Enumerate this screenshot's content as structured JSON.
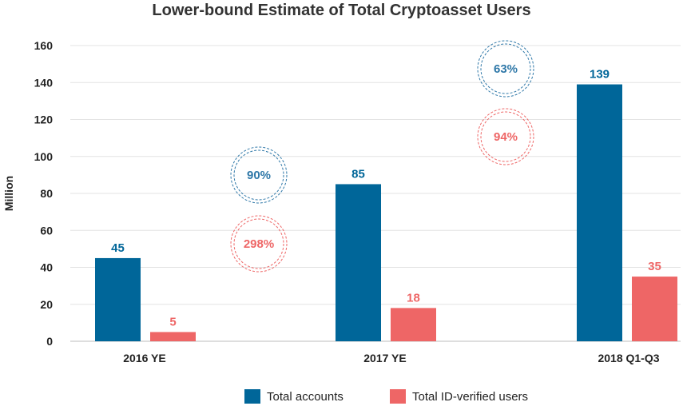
{
  "chart_data": {
    "type": "bar",
    "title": "Lower-bound Estimate of Total Cryptoasset Users",
    "ylabel": "Million",
    "xlabel": "",
    "ylim": [
      0,
      160
    ],
    "yticks": [
      "0",
      "20",
      "40",
      "60",
      "80",
      "100",
      "120",
      "140",
      "160"
    ],
    "grid": true,
    "legend_position": "bottom",
    "categories": [
      "2016 YE",
      "2017 YE",
      "2018 Q1-Q3"
    ],
    "series": [
      {
        "name": "Total accounts",
        "color": "#006699",
        "values": [
          45,
          85,
          139
        ],
        "labels": [
          "45",
          "85",
          "139"
        ]
      },
      {
        "name": "Total ID-verified users",
        "color": "#ee6666",
        "values": [
          5,
          18,
          35
        ],
        "labels": [
          "5",
          "18",
          "35"
        ]
      }
    ],
    "annotations": [
      {
        "text": "90%",
        "series": "Total accounts",
        "color": "#2f78a8"
      },
      {
        "text": "298%",
        "series": "Total ID-verified users",
        "color": "#ee6666"
      },
      {
        "text": "63%",
        "series": "Total accounts",
        "color": "#2f78a8"
      },
      {
        "text": "94%",
        "series": "Total ID-verified users",
        "color": "#ee6666"
      }
    ]
  }
}
